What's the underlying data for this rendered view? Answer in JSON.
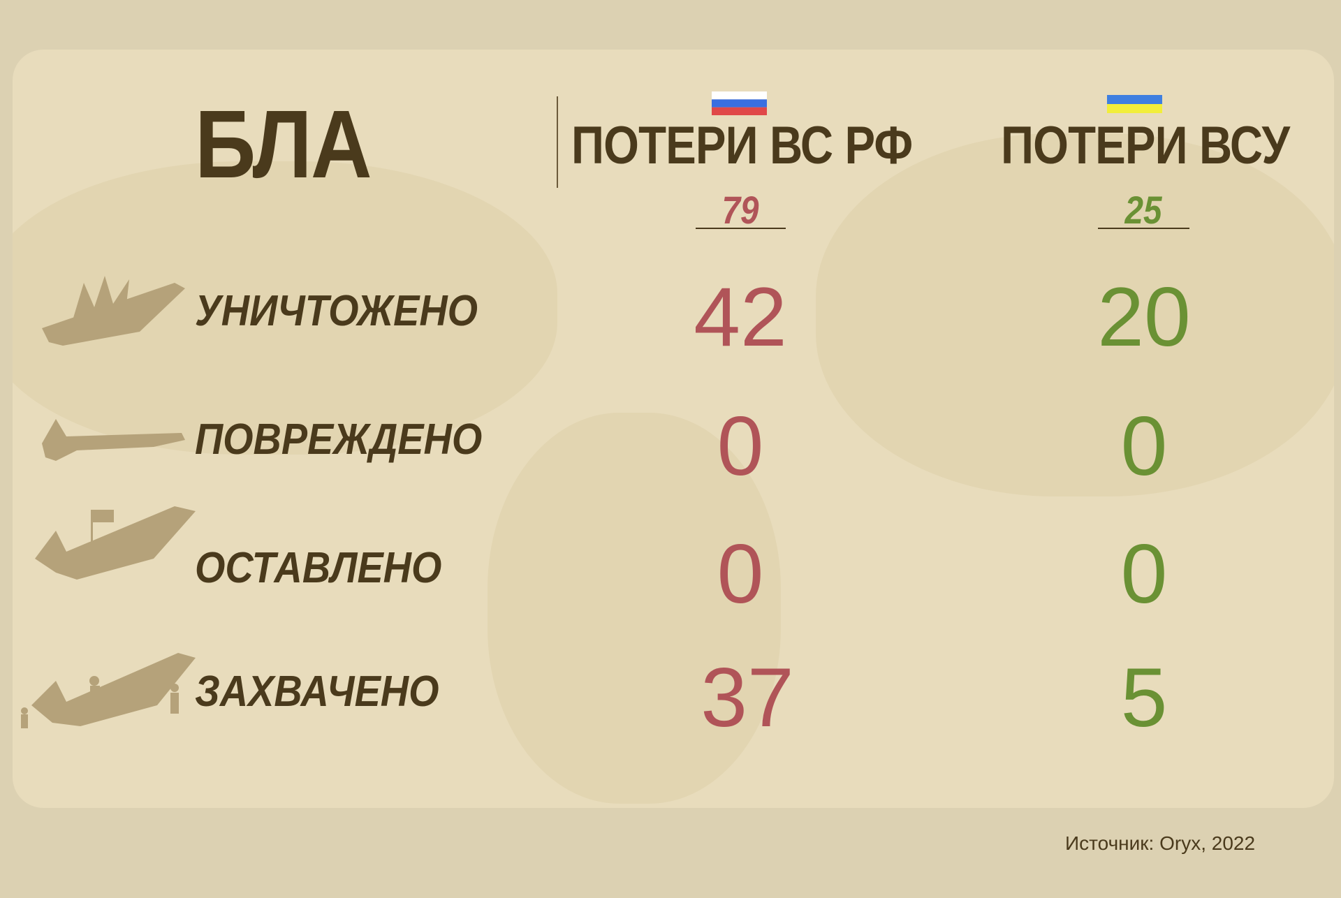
{
  "title": "БЛА",
  "columns": [
    {
      "label": "ПОТЕРИ ВС РФ",
      "total": "79",
      "flag": "russia-flag",
      "color": "#b05458"
    },
    {
      "label": "ПОТЕРИ ВСУ",
      "total": "25",
      "flag": "ukraine-flag",
      "color": "#6a9134"
    }
  ],
  "rows": [
    {
      "label": "УНИЧТОЖЕНО",
      "icon": "destroyed-drone-icon",
      "ru": "42",
      "ua": "20"
    },
    {
      "label": "ПОВРЕЖДЕНО",
      "icon": "damaged-drone-icon",
      "ru": "0",
      "ua": "0"
    },
    {
      "label": "ОСТАВЛЕНО",
      "icon": "abandoned-drone-icon",
      "ru": "0",
      "ua": "0"
    },
    {
      "label": "ЗАХВАЧЕНО",
      "icon": "captured-drone-icon",
      "ru": "37",
      "ua": "5"
    }
  ],
  "source": "Источник: Oryx, 2022"
}
